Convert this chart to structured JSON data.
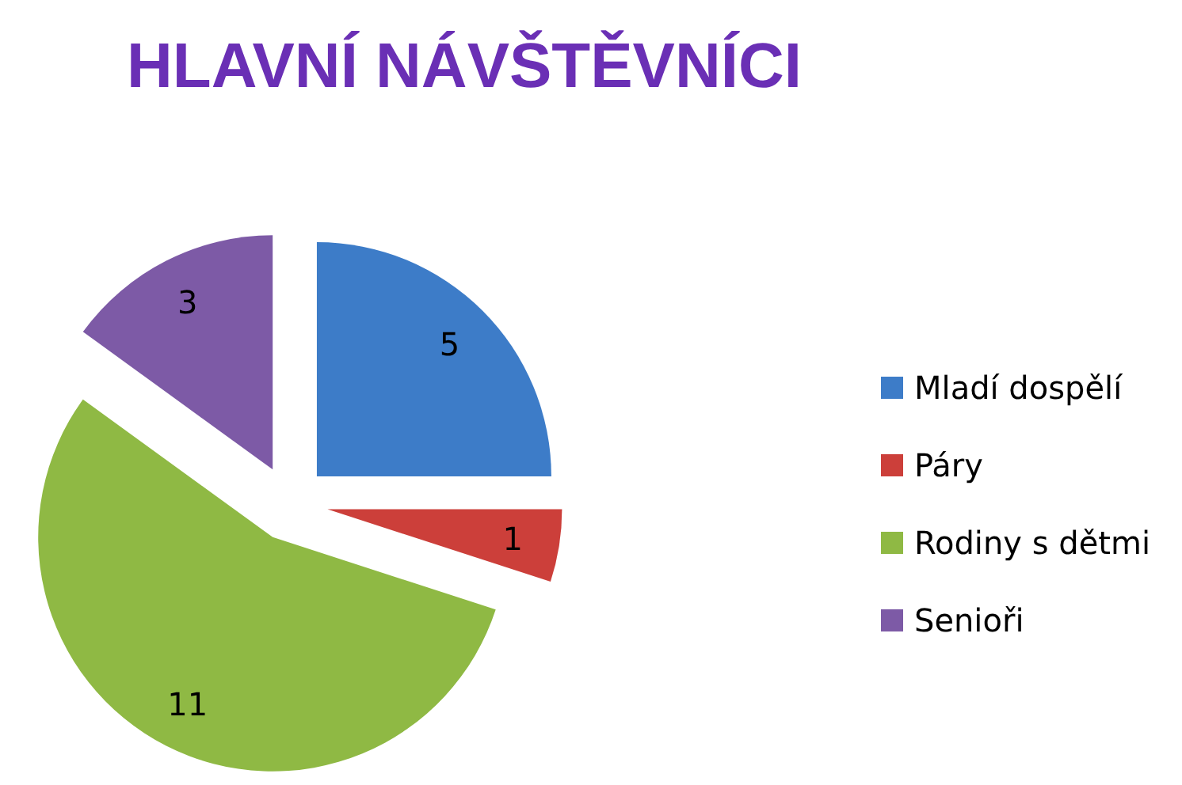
{
  "chart_data": {
    "type": "pie",
    "title": "HLAVNÍ NÁVŠTĚVNÍCI",
    "categories": [
      "Mladí dospělí",
      "Páry",
      "Rodiny s dětmi",
      "Senioři"
    ],
    "values": [
      5,
      1,
      11,
      3
    ],
    "colors": [
      "#3d7cc8",
      "#cc3f3a",
      "#8fb944",
      "#7d5aa6"
    ],
    "data_labels": true,
    "legend": "right"
  }
}
